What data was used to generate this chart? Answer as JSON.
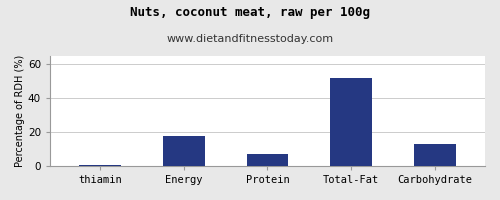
{
  "title": "Nuts, coconut meat, raw per 100g",
  "subtitle": "www.dietandfitnesstoday.com",
  "categories": [
    "thiamin",
    "Energy",
    "Protein",
    "Total-Fat",
    "Carbohydrate"
  ],
  "values": [
    0.3,
    18.0,
    7.0,
    52.0,
    13.0
  ],
  "bar_color": "#253882",
  "ylabel": "Percentage of RDH (%)",
  "ylim": [
    0,
    65
  ],
  "yticks": [
    0,
    20,
    40,
    60
  ],
  "background_color": "#e8e8e8",
  "plot_bg_color": "#ffffff",
  "title_fontsize": 9,
  "subtitle_fontsize": 8,
  "axis_label_fontsize": 7,
  "tick_fontsize": 7.5
}
